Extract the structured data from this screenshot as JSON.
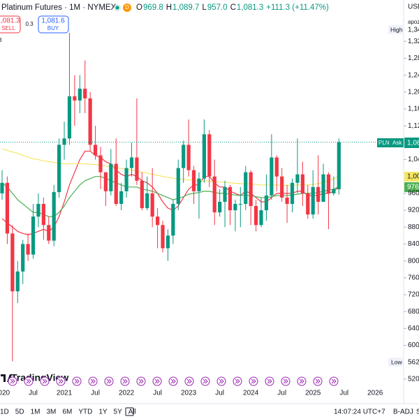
{
  "header": {
    "title": "Platinum Futures · 1M · NYMEX",
    "badge": "D",
    "ohlc": [
      {
        "key": "O",
        "value": "969.8"
      },
      {
        "key": "H",
        "value": "1,089.7"
      },
      {
        "key": "L",
        "value": "957.0"
      },
      {
        "key": "C",
        "value": "1,081.3"
      }
    ],
    "change": "+111.3 (+11.47%)"
  },
  "trade": {
    "sell_price": "1,081.3",
    "sell": "SELL",
    "spread": "0.3",
    "buy_price": "1,081.6",
    "buy": "BUY",
    "side_note": "3"
  },
  "price_axis": {
    "currency": "USD",
    "unit_note": "apoz",
    "high_tag": "High",
    "high_value": "1,34",
    "low_tag": "Low",
    "low_value": "562.",
    "symbol_tag": "PLN",
    "ask_tag": "Ask",
    "last_value": "1,08",
    "ma_long_value": "1,00",
    "ma_mid_value": "976."
  },
  "chart_data": {
    "type": "candlestick",
    "x_labels": [
      "2020",
      "Jul",
      "2021",
      "Jul",
      "2022",
      "Jul",
      "2023",
      "Jul",
      "2024",
      "Jul",
      "2025",
      "Jul",
      "2026"
    ],
    "open": [
      960,
      985,
      865,
      728,
      775,
      840,
      815,
      905,
      935,
      885,
      848,
      963,
      1075,
      1090,
      1190,
      1180,
      1208,
      1185,
      1075,
      1050,
      1010,
      965,
      1030,
      935,
      965,
      1020,
      1045,
      990,
      925,
      960,
      905,
      885,
      830,
      860,
      935,
      1020,
      1075,
      1015,
      965,
      995,
      1100,
      1000,
      915,
      940,
      975,
      920,
      935,
      935,
      1010,
      930,
      885,
      920,
      955,
      1045,
      1000,
      950,
      935,
      985,
      1005,
      960,
      910,
      975,
      940,
      1005,
      960,
      969.8
    ],
    "high": [
      1015,
      1000,
      885,
      800,
      850,
      865,
      935,
      960,
      950,
      905,
      980,
      1090,
      1130,
      1340,
      1240,
      1240,
      1275,
      1200,
      1120,
      1070,
      1010,
      1065,
      1090,
      985,
      1040,
      1080,
      1185,
      1010,
      1000,
      1020,
      925,
      895,
      875,
      945,
      1040,
      1085,
      1135,
      1025,
      1010,
      1135,
      1110,
      1040,
      970,
      990,
      980,
      945,
      975,
      1025,
      1015,
      945,
      950,
      1005,
      1100,
      1050,
      1020,
      980,
      995,
      1090,
      1035,
      980,
      1015,
      1050,
      1030,
      1010,
      1000,
      1089.7
    ],
    "low": [
      945,
      840,
      562.3,
      700,
      745,
      800,
      805,
      880,
      850,
      840,
      835,
      950,
      1040,
      1075,
      1120,
      1150,
      1150,
      1060,
      1040,
      970,
      930,
      955,
      930,
      920,
      950,
      1000,
      980,
      920,
      920,
      880,
      830,
      820,
      800,
      840,
      920,
      985,
      1000,
      935,
      900,
      985,
      975,
      885,
      905,
      880,
      885,
      870,
      880,
      920,
      885,
      870,
      880,
      895,
      945,
      965,
      940,
      890,
      915,
      960,
      930,
      900,
      900,
      910,
      940,
      875,
      955,
      957.0
    ],
    "close": [
      985,
      865,
      728,
      775,
      840,
      815,
      905,
      935,
      885,
      848,
      963,
      1075,
      1090,
      1190,
      1180,
      1208,
      1185,
      1075,
      1050,
      1010,
      965,
      1030,
      935,
      965,
      1020,
      1045,
      990,
      925,
      960,
      905,
      885,
      830,
      860,
      935,
      1020,
      1075,
      1015,
      965,
      995,
      1100,
      1000,
      915,
      940,
      975,
      920,
      935,
      935,
      1010,
      930,
      885,
      920,
      955,
      1045,
      1000,
      950,
      935,
      985,
      1005,
      960,
      910,
      975,
      940,
      1005,
      960,
      970,
      1081.3
    ],
    "up_color": "#089981",
    "down_color": "#f23645",
    "series": [
      {
        "color": "#f23645",
        "values": [
          900,
          890,
          880,
          870,
          865,
          862,
          865,
          870,
          875,
          870,
          880,
          905,
          940,
          980,
          1010,
          1040,
          1060,
          1060,
          1050,
          1045,
          1035,
          1030,
          1015,
          1005,
          1000,
          1005,
          1000,
          990,
          985,
          975,
          960,
          940,
          925,
          920,
          930,
          950,
          970,
          980,
          980,
          1000,
          1000,
          985,
          975,
          975,
          965,
          960,
          955,
          965,
          960,
          950,
          940,
          940,
          950,
          960,
          960,
          960,
          960,
          965,
          965,
          955,
          955,
          955,
          960,
          960,
          965,
          975
        ]
      },
      {
        "color": "#4caf50",
        "values": [
          985,
          975,
          960,
          945,
          935,
          925,
          915,
          915,
          910,
          905,
          905,
          915,
          930,
          950,
          965,
          980,
          990,
          995,
          1000,
          1000,
          995,
          990,
          985,
          980,
          975,
          975,
          975,
          970,
          968,
          965,
          960,
          955,
          950,
          945,
          948,
          952,
          958,
          960,
          962,
          965,
          965,
          962,
          960,
          960,
          958,
          956,
          955,
          956,
          955,
          952,
          950,
          950,
          952,
          955,
          955,
          955,
          956,
          958,
          960,
          960,
          960,
          962,
          965,
          968,
          970,
          976
        ]
      },
      {
        "color": "#f5e663",
        "values": [
          1065,
          1062,
          1058,
          1055,
          1050,
          1046,
          1042,
          1040,
          1037,
          1035,
          1033,
          1032,
          1030,
          1030,
          1030,
          1030,
          1030,
          1029,
          1028,
          1027,
          1025,
          1023,
          1021,
          1019,
          1017,
          1015,
          1013,
          1010,
          1008,
          1005,
          1003,
          1000,
          998,
          996,
          994,
          993,
          992,
          991,
          990,
          990,
          989,
          988,
          987,
          986,
          985,
          984,
          983,
          983,
          982,
          981,
          980,
          980,
          980,
          980,
          979,
          979,
          979,
          980,
          980,
          980,
          981,
          983,
          986,
          990,
          995,
          1000
        ]
      }
    ],
    "ylim": [
      500,
      1418
    ],
    "yticks": [
      {
        "value": 1320,
        "label": "1,320"
      },
      {
        "value": 1280,
        "label": "1,280"
      },
      {
        "value": 1240,
        "label": "1,240"
      },
      {
        "value": 1200,
        "label": "1,200"
      },
      {
        "value": 1160,
        "label": "1,160"
      },
      {
        "value": 1120,
        "label": "1,120"
      },
      {
        "value": 1040,
        "label": "1,040"
      },
      960,
      920,
      880,
      840,
      800,
      760,
      720,
      680,
      640,
      600,
      520
    ]
  },
  "footer": {
    "logo": "TradingView",
    "ranges": [
      "1D",
      "5D",
      "1M",
      "3M",
      "6M",
      "YTD",
      "1Y",
      "5Y",
      "All"
    ],
    "time": "14:07:24 UTC+7",
    "adj": "B-ADJ",
    "extra": "S"
  }
}
